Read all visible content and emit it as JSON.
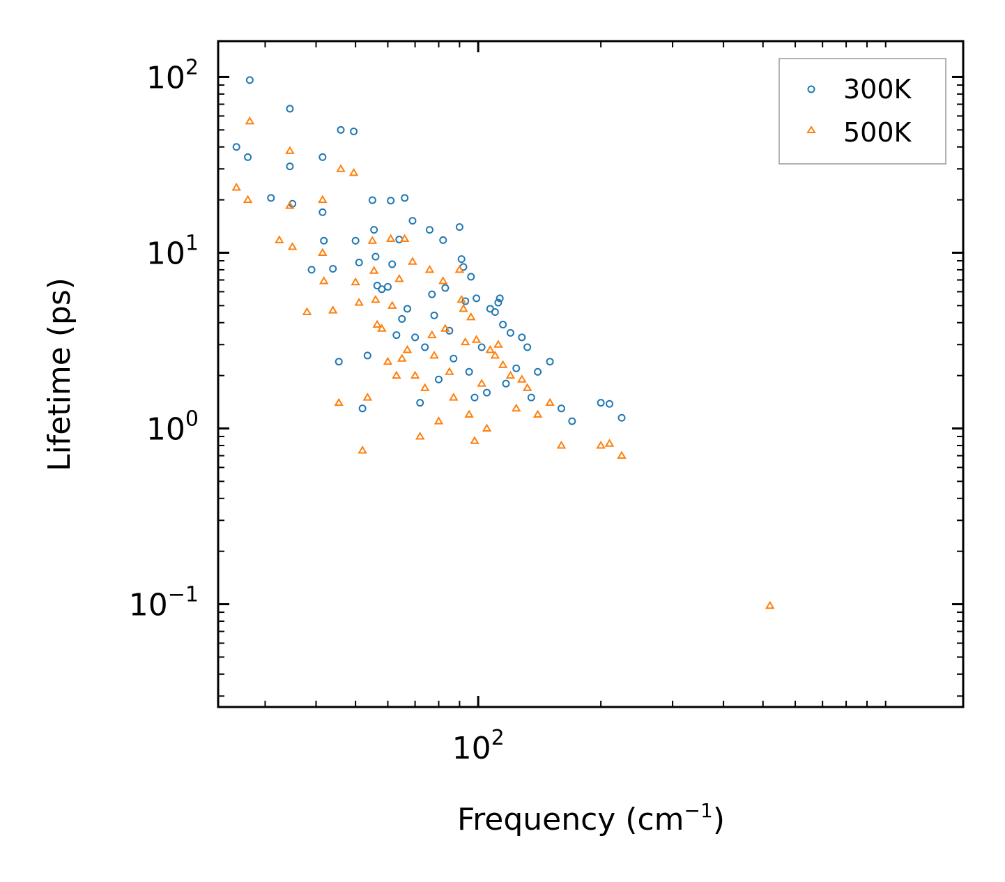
{
  "chart_data": {
    "type": "scatter",
    "title": "",
    "xlabel": "Frequency (cm",
    "xlabel_sup": "−1",
    "xlabel_end": ")",
    "ylabel": "Lifetime (ps)",
    "xscale": "log",
    "yscale": "log",
    "xlim": [
      23,
      1550
    ],
    "ylim": [
      0.026,
      160
    ],
    "x_major_ticks": [
      {
        "value": 100,
        "base": "10",
        "exp": "2"
      }
    ],
    "y_major_ticks": [
      {
        "value": 0.1,
        "base": "10",
        "exp": "−1"
      },
      {
        "value": 1,
        "base": "10",
        "exp": "0"
      },
      {
        "value": 10,
        "base": "10",
        "exp": "1"
      },
      {
        "value": 100,
        "base": "10",
        "exp": "2"
      }
    ],
    "legend_position": "top-right",
    "series": [
      {
        "name": "300K",
        "marker": "circle",
        "color": "#1f77b4",
        "points": [
          [
            25.5,
            40
          ],
          [
            27.5,
            96
          ],
          [
            27.2,
            35
          ],
          [
            31,
            20.5
          ],
          [
            34.5,
            66
          ],
          [
            34.5,
            31
          ],
          [
            35,
            19
          ],
          [
            39,
            8
          ],
          [
            41.5,
            35
          ],
          [
            41.5,
            17
          ],
          [
            41.8,
            11.7
          ],
          [
            44,
            8.1
          ],
          [
            45.5,
            2.4
          ],
          [
            46,
            50
          ],
          [
            49.5,
            49
          ],
          [
            50,
            11.7
          ],
          [
            51,
            8.8
          ],
          [
            52,
            1.3
          ],
          [
            53.5,
            2.6
          ],
          [
            55,
            19.9
          ],
          [
            55.5,
            13.5
          ],
          [
            56,
            9.5
          ],
          [
            56.5,
            6.5
          ],
          [
            58,
            6.2
          ],
          [
            60,
            6.4
          ],
          [
            61,
            19.8
          ],
          [
            61.5,
            8.6
          ],
          [
            63,
            3.4
          ],
          [
            64,
            11.9
          ],
          [
            65,
            4.2
          ],
          [
            66,
            20.5
          ],
          [
            67,
            4.8
          ],
          [
            69,
            15.2
          ],
          [
            70,
            3.3
          ],
          [
            72,
            1.4
          ],
          [
            74,
            2.9
          ],
          [
            76,
            13.5
          ],
          [
            77,
            5.8
          ],
          [
            78,
            4.4
          ],
          [
            80,
            1.9
          ],
          [
            82,
            11.8
          ],
          [
            83,
            6.3
          ],
          [
            85,
            3.6
          ],
          [
            87,
            2.5
          ],
          [
            90,
            14
          ],
          [
            91,
            9.2
          ],
          [
            92,
            8.3
          ],
          [
            93,
            5.3
          ],
          [
            95,
            2.1
          ],
          [
            96,
            7.3
          ],
          [
            98,
            1.5
          ],
          [
            99,
            5.5
          ],
          [
            102,
            2.9
          ],
          [
            105,
            1.6
          ],
          [
            107,
            4.8
          ],
          [
            110,
            4.6
          ],
          [
            112,
            5.2
          ],
          [
            113,
            5.5
          ],
          [
            115,
            3.9
          ],
          [
            117,
            1.8
          ],
          [
            120,
            3.5
          ],
          [
            124,
            2.2
          ],
          [
            128,
            3.3
          ],
          [
            132,
            2.9
          ],
          [
            135,
            1.5
          ],
          [
            140,
            2.1
          ],
          [
            150,
            2.4
          ],
          [
            160,
            1.3
          ],
          [
            170,
            1.1
          ],
          [
            200,
            1.4
          ],
          [
            210,
            1.38
          ],
          [
            225,
            1.15
          ]
        ]
      },
      {
        "name": "500K",
        "marker": "triangle",
        "color": "#ff7f0e",
        "points": [
          [
            25.5,
            23.5
          ],
          [
            27.5,
            56
          ],
          [
            27.2,
            20
          ],
          [
            32.5,
            11.8
          ],
          [
            34.5,
            38
          ],
          [
            34.5,
            18.5
          ],
          [
            35,
            10.8
          ],
          [
            38,
            4.6
          ],
          [
            41.5,
            20
          ],
          [
            41.5,
            10
          ],
          [
            41.8,
            6.9
          ],
          [
            44,
            4.7
          ],
          [
            45.5,
            1.4
          ],
          [
            46,
            30
          ],
          [
            49.5,
            28.5
          ],
          [
            50,
            6.8
          ],
          [
            51,
            5.2
          ],
          [
            52,
            0.75
          ],
          [
            53.5,
            1.5
          ],
          [
            55,
            11.7
          ],
          [
            55.5,
            7.9
          ],
          [
            56,
            5.4
          ],
          [
            56.5,
            3.9
          ],
          [
            58,
            3.7
          ],
          [
            60,
            2.4
          ],
          [
            61,
            12
          ],
          [
            61.5,
            5
          ],
          [
            63,
            2
          ],
          [
            64,
            7.1
          ],
          [
            65,
            2.5
          ],
          [
            66,
            12
          ],
          [
            67,
            2.8
          ],
          [
            69,
            8.9
          ],
          [
            70,
            2
          ],
          [
            72,
            0.9
          ],
          [
            74,
            1.7
          ],
          [
            76,
            8
          ],
          [
            77,
            3.4
          ],
          [
            78,
            2.6
          ],
          [
            80,
            1.1
          ],
          [
            82,
            6.9
          ],
          [
            83,
            3.7
          ],
          [
            85,
            2.1
          ],
          [
            87,
            1.5
          ],
          [
            90,
            8
          ],
          [
            91,
            5.4
          ],
          [
            92,
            4.8
          ],
          [
            93,
            3.1
          ],
          [
            95,
            1.2
          ],
          [
            96,
            4.3
          ],
          [
            98,
            0.85
          ],
          [
            99,
            3.2
          ],
          [
            102,
            1.8
          ],
          [
            105,
            1
          ],
          [
            107,
            2.8
          ],
          [
            110,
            2.6
          ],
          [
            112,
            3
          ],
          [
            115,
            2.3
          ],
          [
            120,
            2
          ],
          [
            124,
            1.3
          ],
          [
            128,
            1.9
          ],
          [
            132,
            1.7
          ],
          [
            140,
            1.2
          ],
          [
            150,
            1.4
          ],
          [
            160,
            0.8
          ],
          [
            200,
            0.8
          ],
          [
            210,
            0.82
          ],
          [
            225,
            0.7
          ],
          [
            520,
            0.098
          ]
        ]
      }
    ]
  }
}
